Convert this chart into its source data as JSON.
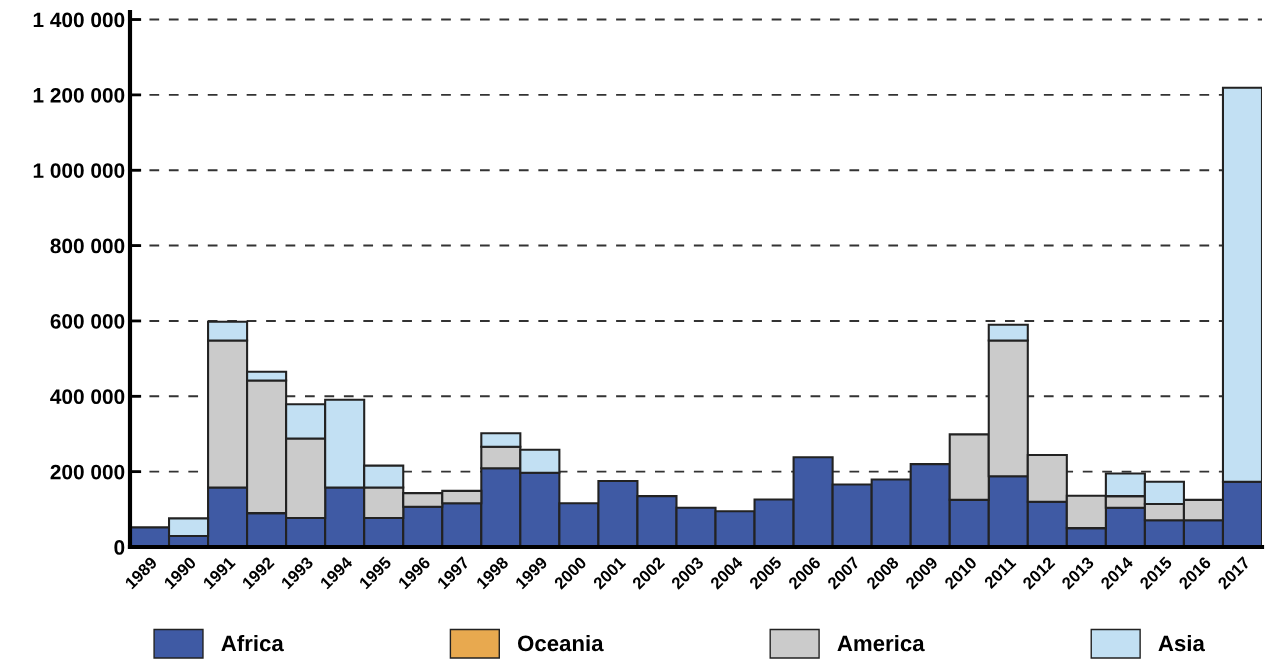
{
  "chart_data": {
    "type": "bar",
    "stacked": true,
    "categories": [
      "1989",
      "1990",
      "1991",
      "1992",
      "1993",
      "1994",
      "1995",
      "1996",
      "1997",
      "1998",
      "1999",
      "2000",
      "2001",
      "2002",
      "2003",
      "2004",
      "2005",
      "2006",
      "2007",
      "2008",
      "2009",
      "2010",
      "2011",
      "2012",
      "2013",
      "2014",
      "2015",
      "2016",
      "2017"
    ],
    "series": [
      {
        "name": "Africa",
        "color": "#3f5aa4",
        "values": [
          52000,
          29000,
          158000,
          90000,
          77000,
          158000,
          77000,
          107000,
          116000,
          209000,
          197000,
          116000,
          175000,
          135000,
          104000,
          95000,
          126000,
          238000,
          166000,
          179000,
          220000,
          125000,
          188000,
          120000,
          50000,
          104000,
          71000,
          71000,
          173000
        ]
      },
      {
        "name": "Oceania",
        "color": "#e8a94f",
        "values": [
          0,
          0,
          0,
          0,
          0,
          0,
          0,
          0,
          0,
          0,
          0,
          0,
          0,
          0,
          0,
          0,
          0,
          0,
          0,
          0,
          0,
          0,
          0,
          0,
          0,
          0,
          0,
          0,
          0
        ]
      },
      {
        "name": "America",
        "color": "#cbcbcb",
        "values": [
          0,
          0,
          390000,
          352000,
          211000,
          0,
          81000,
          36000,
          33000,
          57000,
          0,
          0,
          0,
          0,
          0,
          0,
          0,
          0,
          0,
          0,
          0,
          174000,
          360000,
          124000,
          86000,
          31000,
          43000,
          54000,
          0
        ]
      },
      {
        "name": "Asia",
        "color": "#c2e0f3",
        "values": [
          0,
          47000,
          50000,
          23000,
          91000,
          233000,
          58000,
          0,
          0,
          36000,
          61000,
          0,
          0,
          0,
          0,
          0,
          0,
          0,
          0,
          0,
          0,
          0,
          42000,
          0,
          0,
          60000,
          59000,
          0,
          1046000
        ]
      }
    ],
    "ylim": [
      0,
      1420000
    ],
    "yticks": [
      {
        "value": 0,
        "label": "0"
      },
      {
        "value": 200000,
        "label": "200 000"
      },
      {
        "value": 400000,
        "label": "400 000"
      },
      {
        "value": 600000,
        "label": "600 000"
      },
      {
        "value": 800000,
        "label": "800 000"
      },
      {
        "value": 1000000,
        "label": "1 000 000"
      },
      {
        "value": 1200000,
        "label": "1 200 000"
      },
      {
        "value": 1400000,
        "label": "1 400 000"
      }
    ],
    "grid": "y",
    "legend": "bottom"
  }
}
